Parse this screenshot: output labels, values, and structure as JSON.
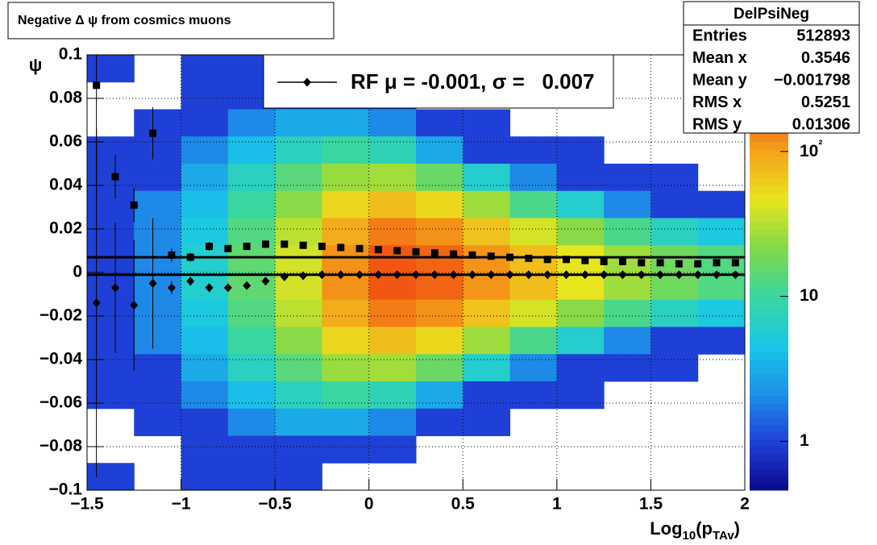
{
  "chart_data": {
    "type": "heatmap",
    "title": "Negative Δ ψ from cosmics muons",
    "xlabel": [
      "Log",
      "10",
      "(p",
      "TAv",
      ")"
    ],
    "ylabel": "ψ",
    "xlim": [
      -1.5,
      2
    ],
    "ylim": [
      -0.1,
      0.1
    ],
    "xticks": [
      {
        "value": -1.5,
        "label": "−1.5"
      },
      {
        "value": -1,
        "label": "−1"
      },
      {
        "value": -0.5,
        "label": "−0.5"
      },
      0,
      0.5,
      1,
      1.5,
      2
    ],
    "yticks": [
      0.1,
      0.08,
      0.06,
      0.04,
      0.02,
      0,
      {
        "value": -0.02,
        "label": "−0.02"
      },
      {
        "value": -0.04,
        "label": "−0.04"
      },
      {
        "value": -0.06,
        "label": "−0.06"
      },
      {
        "value": -0.08,
        "label": "−0.08"
      },
      {
        "value": -0.1,
        "label": "−0.1"
      }
    ],
    "grid": true,
    "xbins": [
      -1.5,
      -1.25,
      -1,
      -0.75,
      -0.5,
      -0.25,
      0,
      0.25,
      0.5,
      0.75,
      1,
      1.25,
      1.5,
      1.75,
      2
    ],
    "ybins": [
      0.1,
      0.0875,
      0.075,
      0.0625,
      0.05,
      0.0375,
      0.025,
      0.0125,
      0,
      -0.0125,
      -0.025,
      -0.0375,
      -0.05,
      -0.0625,
      -0.075,
      -0.0875,
      -0.1
    ],
    "z": [
      [
        1,
        null,
        1,
        1,
        1,
        null,
        null,
        null,
        null,
        null,
        null,
        null,
        null,
        null
      ],
      [
        null,
        null,
        1,
        1,
        1,
        1,
        1,
        null,
        null,
        null,
        null,
        null,
        null,
        null
      ],
      [
        null,
        1,
        1,
        2,
        3,
        3,
        2,
        1,
        1,
        null,
        null,
        null,
        null,
        null
      ],
      [
        1,
        1,
        2,
        4,
        7,
        10,
        8,
        3,
        1,
        1,
        1,
        null,
        null,
        null
      ],
      [
        1,
        1,
        3,
        7,
        14,
        26,
        28,
        17,
        6,
        2,
        1,
        1,
        1,
        null
      ],
      [
        1,
        2,
        4,
        10,
        23,
        55,
        73,
        54,
        27,
        12,
        6,
        2,
        1,
        1
      ],
      [
        1,
        2,
        5,
        13,
        33,
        90,
        140,
        116,
        69,
        40,
        23,
        12,
        7,
        5
      ],
      [
        1,
        2,
        6,
        15,
        39,
        116,
        192,
        171,
        113,
        74,
        46,
        27,
        18,
        13
      ],
      [
        1,
        2,
        6,
        15,
        39,
        116,
        192,
        171,
        113,
        74,
        46,
        27,
        18,
        13
      ],
      [
        1,
        2,
        5,
        13,
        33,
        90,
        140,
        116,
        69,
        40,
        23,
        12,
        7,
        5
      ],
      [
        1,
        2,
        4,
        10,
        23,
        55,
        73,
        54,
        27,
        12,
        6,
        2,
        1,
        1
      ],
      [
        1,
        1,
        3,
        7,
        14,
        26,
        28,
        17,
        6,
        2,
        1,
        1,
        1,
        null
      ],
      [
        1,
        1,
        2,
        4,
        7,
        10,
        8,
        3,
        1,
        1,
        1,
        null,
        null,
        null
      ],
      [
        null,
        1,
        1,
        2,
        3,
        3,
        2,
        1,
        1,
        null,
        null,
        null,
        null,
        null
      ],
      [
        null,
        null,
        1,
        1,
        1,
        1,
        1,
        null,
        null,
        null,
        null,
        null,
        null,
        null
      ],
      [
        1,
        null,
        1,
        1,
        1,
        null,
        null,
        null,
        null,
        null,
        null,
        null,
        null,
        null
      ]
    ],
    "zlim": [
      0.46,
      464
    ],
    "zlog": true,
    "zticks": [
      1,
      10,
      {
        "value": 100,
        "label": "10²"
      }
    ],
    "palette": [
      "#0a0a8c",
      "#1f3fd6",
      "#1e90e8",
      "#19c8e6",
      "#3ad6a0",
      "#7fd94a",
      "#e8e51e",
      "#f5a31a",
      "#f04a12",
      "#b0160c"
    ],
    "x": [
      -1.45,
      -1.35,
      -1.25,
      -1.15,
      -1.05,
      -0.95,
      -0.85,
      -0.75,
      -0.65,
      -0.55,
      -0.45,
      -0.35,
      -0.25,
      -0.15,
      -0.05,
      0.05,
      0.15,
      0.25,
      0.35,
      0.45,
      0.55,
      0.65,
      0.75,
      0.85,
      0.95,
      1.05,
      1.15,
      1.25,
      1.35,
      1.45,
      1.55,
      1.65,
      1.75,
      1.85,
      1.95
    ],
    "series": [
      {
        "marker": "square",
        "color": "#000000",
        "values": [
          0.086,
          0.044,
          0.031,
          0.064,
          0.008,
          0.007,
          0.012,
          0.011,
          0.012,
          0.013,
          0.013,
          0.0125,
          0.012,
          0.0115,
          0.011,
          0.0105,
          0.01,
          0.0095,
          0.009,
          0.0085,
          0.008,
          0.0075,
          0.007,
          0.0065,
          0.006,
          0.006,
          0.0055,
          0.005,
          0.005,
          0.0045,
          0.0045,
          0.004,
          0.004,
          0.0045,
          0.0045
        ],
        "errors": [
          0.05,
          0.01,
          0.008,
          0.012,
          0.003,
          0.002,
          0.002,
          0.001,
          0.001,
          0.001,
          0.001,
          0.001,
          0.001,
          0.001,
          0.001,
          0.001,
          0.001,
          0.001,
          0.001,
          0.001,
          0.001,
          0.001,
          0.001,
          0.001,
          0.001,
          0.001,
          0.001,
          0.001,
          0.001,
          0.001,
          0.001,
          0.001,
          0.001,
          0.001,
          0.001
        ]
      },
      {
        "name": "RF μ = -0.001, σ =   0.007",
        "marker": "diamond",
        "color": "#000000",
        "values": [
          -0.014,
          -0.007,
          -0.015,
          -0.005,
          -0.007,
          -0.004,
          -0.007,
          -0.007,
          -0.006,
          -0.004,
          -0.002,
          -0.0015,
          -0.001,
          -0.001,
          -0.001,
          -0.001,
          -0.001,
          -0.001,
          -0.001,
          -0.001,
          -0.001,
          -0.001,
          -0.001,
          -0.001,
          -0.001,
          -0.001,
          -0.001,
          -0.001,
          -0.001,
          -0.001,
          -0.001,
          -0.001,
          -0.001,
          -0.001,
          -0.001
        ],
        "errors": [
          0.08,
          0.03,
          0.03,
          0.03,
          0.003,
          0.002,
          0.002,
          0.001,
          0.001,
          0.001,
          0.001,
          0.001,
          0.001,
          0.001,
          0.001,
          0.001,
          0.001,
          0.001,
          0.001,
          0.001,
          0.001,
          0.001,
          0.001,
          0.001,
          0.001,
          0.001,
          0.001,
          0.001,
          0.001,
          0.001,
          0.001,
          0.001,
          0.001,
          0.001,
          0.001
        ]
      }
    ],
    "hlines": [
      0.007,
      -0.001
    ],
    "stats": {
      "title": "DelPsiNeg",
      "rows": [
        [
          "Entries",
          "512893"
        ],
        [
          "Mean x",
          "0.3546"
        ],
        [
          "Mean y",
          "−0.001798"
        ],
        [
          "RMS x",
          "0.5251"
        ],
        [
          "RMS y",
          "0.01306"
        ]
      ]
    }
  }
}
